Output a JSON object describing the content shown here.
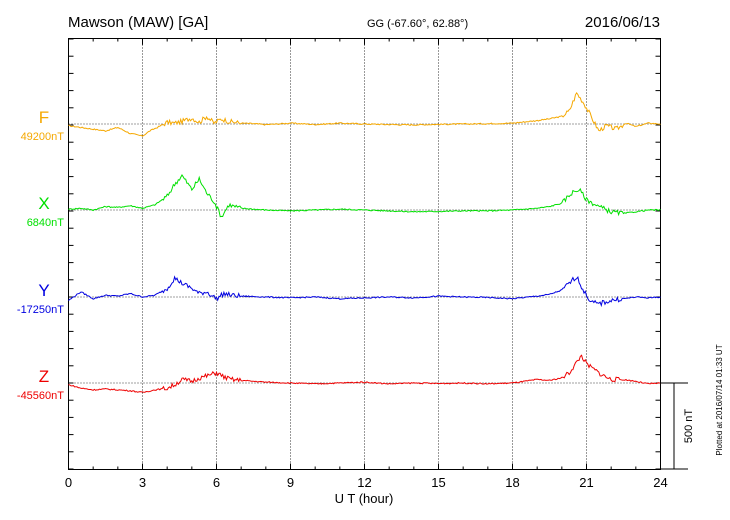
{
  "chart_data": {
    "type": "line",
    "title": "Mawson (MAW)  [GA]",
    "subtitle": "GG (-67.60°,  62.88°)",
    "date": "2016/06/13",
    "xlabel": "U T (hour)",
    "xlim": [
      0,
      24
    ],
    "xticks": [
      "0",
      "3",
      "6",
      "9",
      "12",
      "15",
      "18",
      "21",
      "24"
    ],
    "grid": true,
    "scale_bar": {
      "value_nT": 500,
      "label": "500 nT"
    },
    "footer_note": "Plotted at 2016/07/14 01:33 UT",
    "series": [
      {
        "name": "F",
        "baseline_label": "49200nT",
        "baseline_nT": 49200,
        "color": "#f5a800",
        "x": [
          0,
          0.5,
          1,
          1.5,
          2,
          2.5,
          3,
          3.3,
          3.6,
          4,
          4.3,
          4.6,
          5,
          5.3,
          5.6,
          5.9,
          6.2,
          6.5,
          7,
          7.5,
          8,
          9,
          10,
          11,
          12,
          13,
          14,
          15,
          16,
          17,
          18,
          19,
          19.5,
          20,
          20.3,
          20.6,
          20.9,
          21.2,
          21.5,
          21.8,
          22.2,
          22.6,
          23,
          23.5,
          24
        ],
        "y": [
          -10,
          -20,
          -30,
          -40,
          -20,
          -55,
          -70,
          -40,
          -20,
          10,
          5,
          15,
          35,
          10,
          45,
          5,
          30,
          15,
          5,
          2,
          -4,
          5,
          -3,
          5,
          0,
          -3,
          -5,
          -2,
          0,
          2,
          5,
          20,
          30,
          45,
          75,
          180,
          120,
          40,
          -40,
          -10,
          -30,
          5,
          -15,
          5,
          0
        ]
      },
      {
        "name": "X",
        "baseline_label": "6840nT",
        "baseline_nT": 6840,
        "color": "#00e000",
        "x": [
          0,
          0.5,
          1,
          1.5,
          2,
          2.5,
          3,
          3.5,
          4,
          4.3,
          4.6,
          5,
          5.3,
          5.6,
          5.9,
          6.2,
          6.5,
          7,
          7.5,
          8,
          9,
          10,
          11,
          12,
          13,
          14,
          15,
          16,
          17,
          18,
          19,
          19.5,
          20,
          20.4,
          20.7,
          21,
          21.5,
          22,
          22.5,
          23,
          23.5,
          24
        ],
        "y": [
          5,
          10,
          0,
          20,
          15,
          25,
          10,
          30,
          80,
          150,
          200,
          120,
          180,
          100,
          50,
          -40,
          30,
          10,
          5,
          0,
          -5,
          0,
          5,
          0,
          -5,
          -10,
          -8,
          -5,
          -5,
          0,
          10,
          20,
          40,
          100,
          120,
          60,
          20,
          -10,
          -20,
          -10,
          0,
          0
        ]
      },
      {
        "name": "Y",
        "baseline_label": "-17250nT",
        "baseline_nT": -17250,
        "color": "#0000e0",
        "x": [
          0,
          0.5,
          1,
          1.5,
          2,
          2.5,
          3,
          3.5,
          4,
          4.3,
          4.6,
          5,
          5.3,
          5.6,
          6,
          6.3,
          6.6,
          7,
          8,
          9,
          10,
          11,
          12,
          13,
          14,
          15,
          16,
          17,
          18,
          19,
          19.5,
          20,
          20.3,
          20.6,
          20.9,
          21.2,
          21.5,
          22,
          22.5,
          23,
          23.5,
          24
        ],
        "y": [
          -20,
          30,
          -10,
          10,
          5,
          20,
          0,
          10,
          50,
          110,
          80,
          50,
          20,
          30,
          -10,
          20,
          10,
          5,
          0,
          -5,
          0,
          -10,
          -5,
          0,
          -5,
          5,
          0,
          -3,
          -10,
          5,
          15,
          40,
          80,
          120,
          30,
          -30,
          -40,
          -20,
          -10,
          0,
          -5,
          0
        ]
      },
      {
        "name": "Z",
        "baseline_label": "-45560nT",
        "baseline_nT": -45560,
        "color": "#ee0000",
        "x": [
          0,
          0.5,
          1,
          1.5,
          2,
          2.5,
          3,
          3.5,
          4,
          4.3,
          4.6,
          5,
          5.3,
          5.6,
          6,
          6.3,
          6.6,
          7,
          8,
          9,
          10,
          11,
          12,
          13,
          14,
          15,
          16,
          17,
          18,
          19,
          19.5,
          20,
          20.3,
          20.6,
          20.8,
          21,
          21.3,
          21.6,
          22,
          22.5,
          23,
          23.5,
          24
        ],
        "y": [
          -10,
          -30,
          -40,
          -35,
          -40,
          -45,
          -55,
          -40,
          -30,
          -10,
          20,
          10,
          30,
          40,
          60,
          35,
          20,
          15,
          5,
          0,
          -5,
          0,
          5,
          -5,
          0,
          -3,
          0,
          -5,
          0,
          20,
          15,
          30,
          60,
          120,
          160,
          110,
          80,
          50,
          20,
          20,
          10,
          -5,
          0
        ]
      }
    ]
  }
}
